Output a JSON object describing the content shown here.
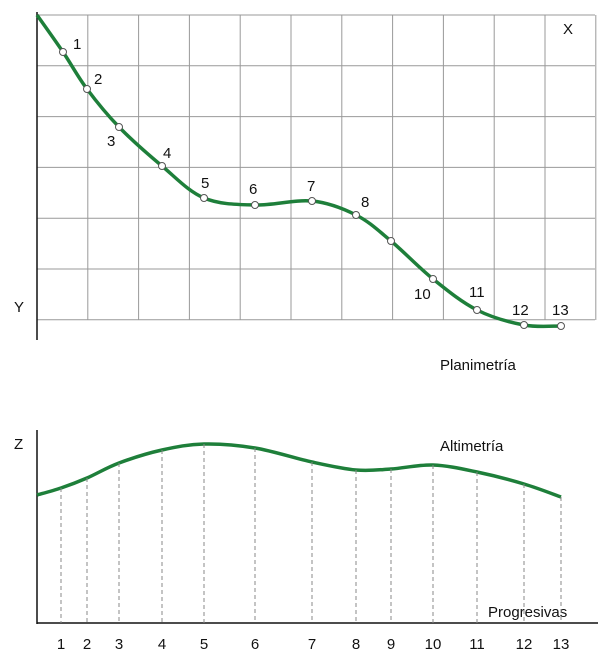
{
  "planimetria": {
    "title": "Planimetría",
    "x_axis": "X",
    "y_axis": "Y",
    "points": [
      "1",
      "2",
      "3",
      "4",
      "5",
      "6",
      "7",
      "8",
      "10",
      "11",
      "12",
      "13"
    ]
  },
  "altimetria": {
    "title": "Altimetría",
    "z_axis": "Z",
    "x_axis": "Progresivas",
    "stations": [
      "1",
      "2",
      "3",
      "4",
      "5",
      "6",
      "7",
      "8",
      "9",
      "10",
      "11",
      "12",
      "13"
    ]
  }
}
